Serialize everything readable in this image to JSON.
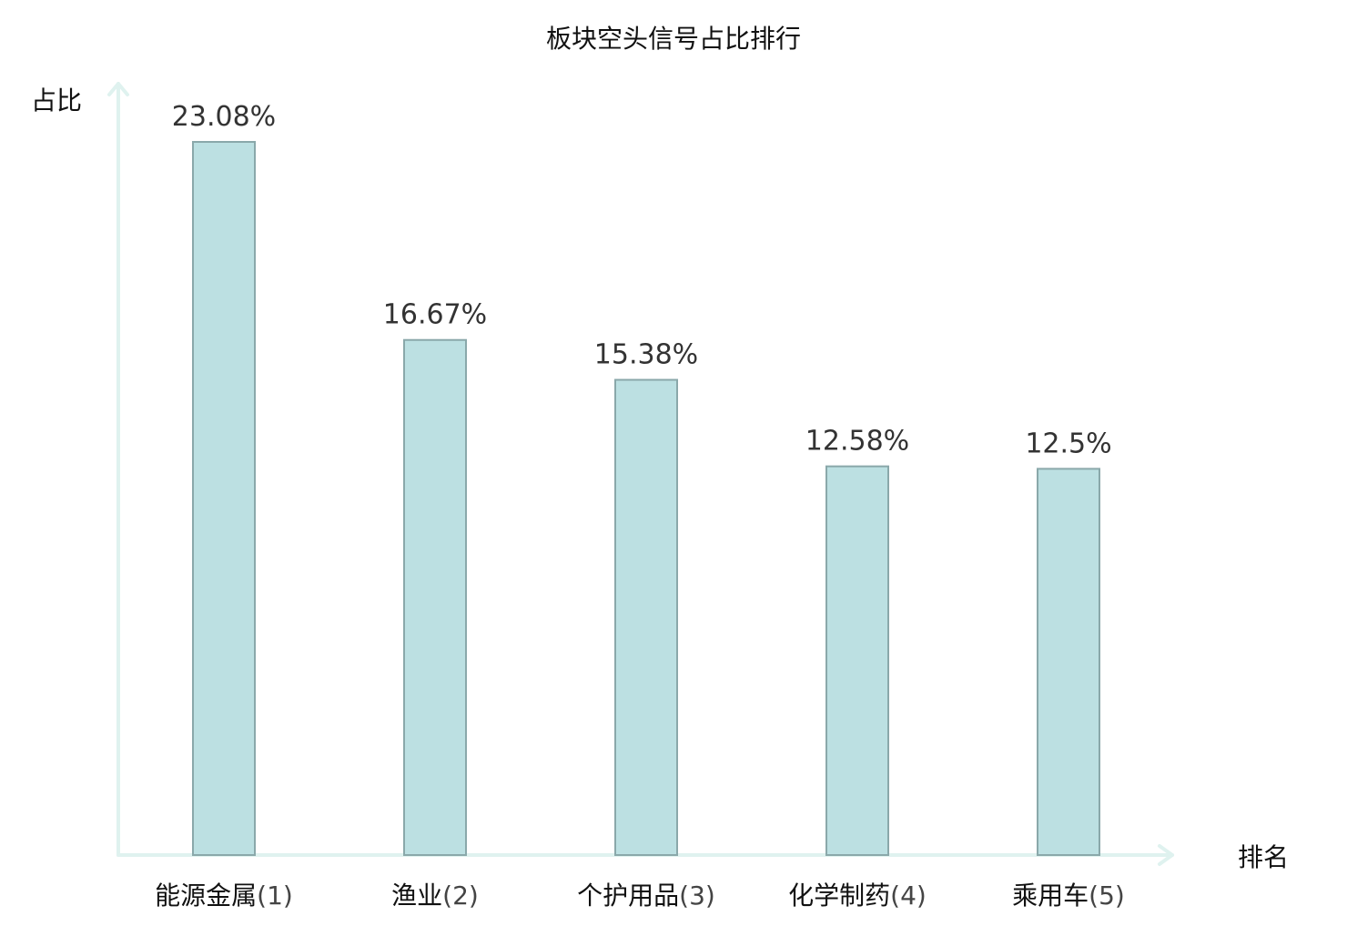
{
  "chart_data": {
    "type": "bar",
    "title": "板块空头信号占比排行",
    "ylabel": "占比",
    "xlabel": "排名",
    "categories": [
      {
        "name": "能源金属",
        "rank": "(1)",
        "highlight": false
      },
      {
        "name": "渔业",
        "rank": "(2)",
        "highlight": false
      },
      {
        "name": "个护用品",
        "rank": "(3)",
        "highlight": false
      },
      {
        "name": "化学制药",
        "rank": "(4)",
        "highlight": true
      },
      {
        "name": "乘用车",
        "rank": "(5)",
        "highlight": false
      }
    ],
    "values": [
      23.08,
      16.67,
      15.38,
      12.58,
      12.5
    ],
    "value_labels": [
      "23.08%",
      "16.67%",
      "15.38%",
      "12.58%",
      "12.5%"
    ],
    "ylim": [
      0,
      23.08
    ],
    "grid": false,
    "legend": "none"
  },
  "colors": {
    "bar_fill": "#bce0e2",
    "bar_stroke": "#8aa8aa",
    "axis": "#dff2ef",
    "highlight": "#e8231d",
    "text": "#111111"
  }
}
